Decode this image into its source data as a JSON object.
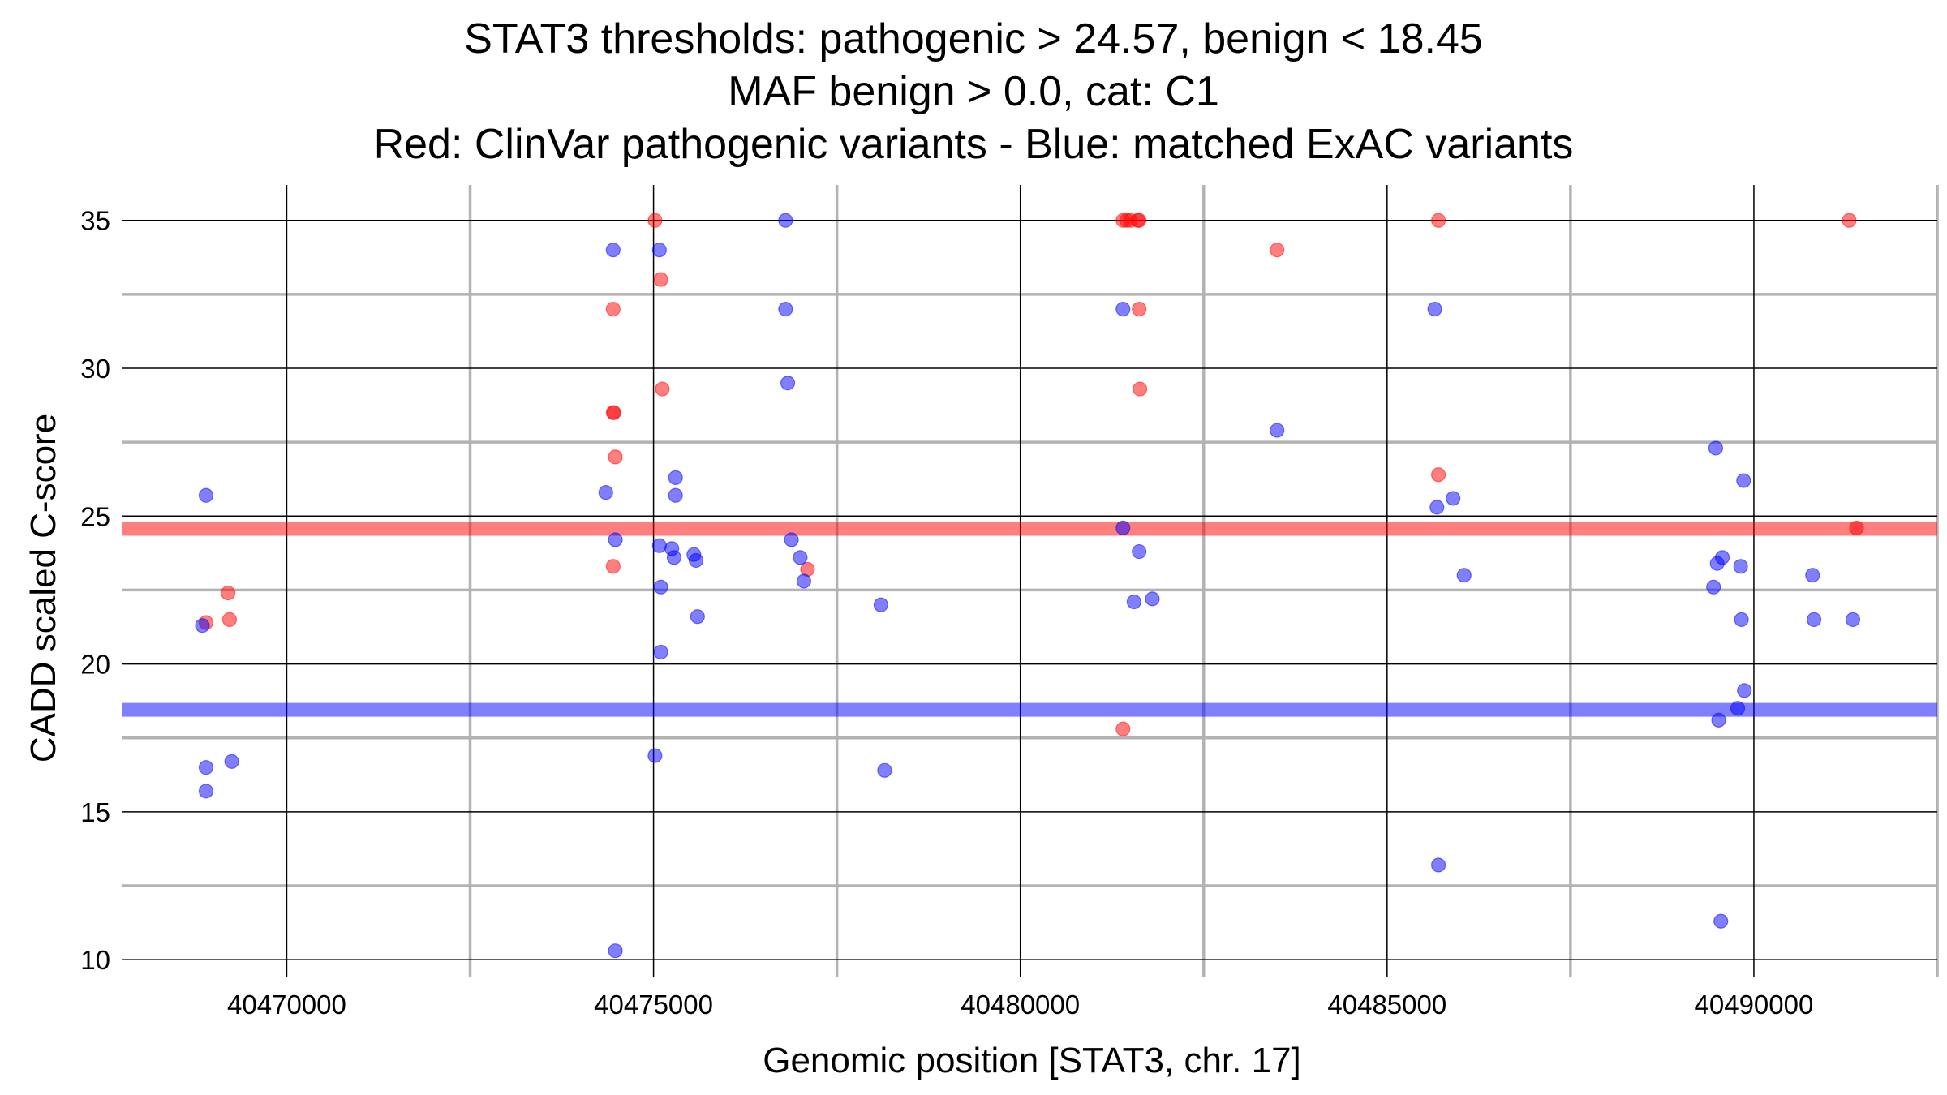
{
  "chart_data": {
    "type": "scatter",
    "title_lines": [
      "STAT3 thresholds: pathogenic > 24.57, benign < 18.45",
      "MAF benign > 0.0, cat: C1",
      "Red: ClinVar pathogenic variants - Blue: matched ExAC variants"
    ],
    "xlabel": "Genomic position [STAT3, chr. 17]",
    "ylabel": "CADD scaled C-score",
    "xlim": [
      40467750,
      40492500
    ],
    "ylim": [
      9.4,
      36.2
    ],
    "x_major_ticks": [
      40470000,
      40475000,
      40480000,
      40485000,
      40490000
    ],
    "x_tick_labels": [
      "40470000",
      "40475000",
      "40480000",
      "40485000",
      "40490000"
    ],
    "x_minor_ticks": [
      40472500,
      40477500,
      40482500,
      40487500,
      40492500
    ],
    "y_major_ticks": [
      10,
      15,
      20,
      25,
      30,
      35
    ],
    "y_tick_labels": [
      "10",
      "15",
      "20",
      "25",
      "30",
      "35"
    ],
    "y_minor_ticks": [
      12.5,
      17.5,
      22.5,
      27.5,
      32.5
    ],
    "grid": true,
    "thresholds": [
      {
        "value": 24.57,
        "color": "#ff0000"
      },
      {
        "value": 18.45,
        "color": "#0000ff"
      }
    ],
    "series": [
      {
        "color": "#ff0000",
        "x": [
          40468900,
          40469200,
          40469220,
          40474450,
          40474450,
          40474460,
          40474480,
          40474450,
          40475020,
          40475100,
          40475120,
          40477100,
          40481400,
          40481450,
          40481500,
          40481600,
          40481620,
          40481630,
          40481620,
          40481400,
          40483500,
          40485700,
          40485700,
          40491300,
          40491400
        ],
        "y": [
          21.4,
          22.4,
          21.5,
          32.0,
          28.5,
          28.5,
          27.0,
          23.3,
          35.0,
          33.0,
          29.3,
          23.2,
          35.0,
          35.0,
          35.0,
          35.0,
          32.0,
          29.3,
          35.0,
          17.8,
          34.0,
          35.0,
          26.4,
          35.0,
          24.6
        ]
      },
      {
        "color": "#0000ff",
        "x": [
          40468850,
          40468900,
          40468900,
          40468900,
          40469250,
          40474350,
          40474450,
          40474480,
          40474480,
          40475020,
          40475080,
          40475080,
          40475100,
          40475100,
          40475250,
          40475280,
          40475300,
          40475300,
          40475550,
          40475580,
          40475600,
          40476800,
          40476800,
          40476830,
          40476880,
          40477000,
          40477050,
          40478100,
          40478150,
          40481400,
          40481400,
          40481550,
          40481620,
          40481800,
          40483500,
          40485650,
          40485680,
          40485700,
          40485900,
          40486050,
          40489450,
          40489480,
          40489500,
          40489520,
          40489550,
          40489570,
          40489780,
          40489820,
          40489830,
          40489860,
          40489870,
          40490800,
          40490820,
          40491350
        ],
        "y": [
          21.3,
          25.7,
          16.5,
          15.7,
          16.7,
          25.8,
          34.0,
          24.2,
          10.3,
          16.9,
          34.0,
          24.0,
          22.6,
          20.4,
          23.9,
          23.6,
          26.3,
          25.7,
          23.7,
          23.5,
          21.6,
          35.0,
          32.0,
          29.5,
          24.2,
          23.6,
          22.8,
          22.0,
          16.4,
          32.0,
          24.6,
          22.1,
          23.8,
          22.2,
          27.9,
          32.0,
          25.3,
          13.2,
          25.6,
          23.0,
          22.6,
          27.3,
          23.4,
          18.1,
          11.3,
          23.6,
          18.5,
          23.3,
          21.5,
          26.2,
          19.1,
          23.0,
          21.5,
          21.5
        ]
      }
    ]
  }
}
